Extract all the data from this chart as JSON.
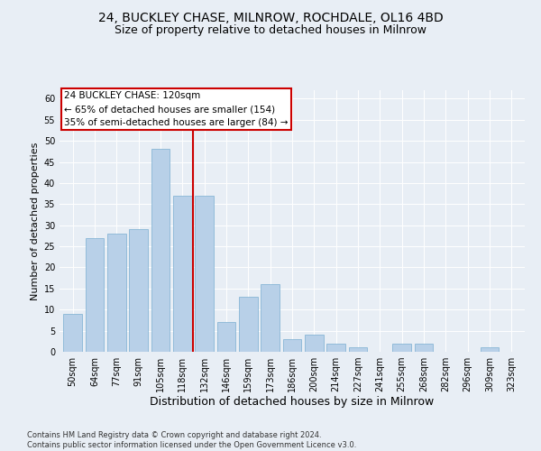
{
  "title1": "24, BUCKLEY CHASE, MILNROW, ROCHDALE, OL16 4BD",
  "title2": "Size of property relative to detached houses in Milnrow",
  "xlabel": "Distribution of detached houses by size in Milnrow",
  "ylabel": "Number of detached properties",
  "categories": [
    "50sqm",
    "64sqm",
    "77sqm",
    "91sqm",
    "105sqm",
    "118sqm",
    "132sqm",
    "146sqm",
    "159sqm",
    "173sqm",
    "186sqm",
    "200sqm",
    "214sqm",
    "227sqm",
    "241sqm",
    "255sqm",
    "268sqm",
    "282sqm",
    "296sqm",
    "309sqm",
    "323sqm"
  ],
  "values": [
    9,
    27,
    28,
    29,
    48,
    37,
    37,
    7,
    13,
    16,
    3,
    4,
    2,
    1,
    0,
    2,
    2,
    0,
    0,
    1,
    0
  ],
  "bar_color": "#b8d0e8",
  "bar_edge_color": "#7aaed0",
  "vline_x": 5.5,
  "vline_color": "#cc0000",
  "annotation_text": "24 BUCKLEY CHASE: 120sqm\n← 65% of detached houses are smaller (154)\n35% of semi-detached houses are larger (84) →",
  "annotation_box_color": "#ffffff",
  "annotation_box_edge": "#cc0000",
  "ylim": [
    0,
    62
  ],
  "yticks": [
    0,
    5,
    10,
    15,
    20,
    25,
    30,
    35,
    40,
    45,
    50,
    55,
    60
  ],
  "bg_color": "#e8eef5",
  "plot_bg_color": "#e8eef5",
  "footnote": "Contains HM Land Registry data © Crown copyright and database right 2024.\nContains public sector information licensed under the Open Government Licence v3.0.",
  "title1_fontsize": 10,
  "title2_fontsize": 9,
  "xlabel_fontsize": 9,
  "ylabel_fontsize": 8,
  "tick_fontsize": 7,
  "annot_fontsize": 7.5,
  "footnote_fontsize": 6
}
